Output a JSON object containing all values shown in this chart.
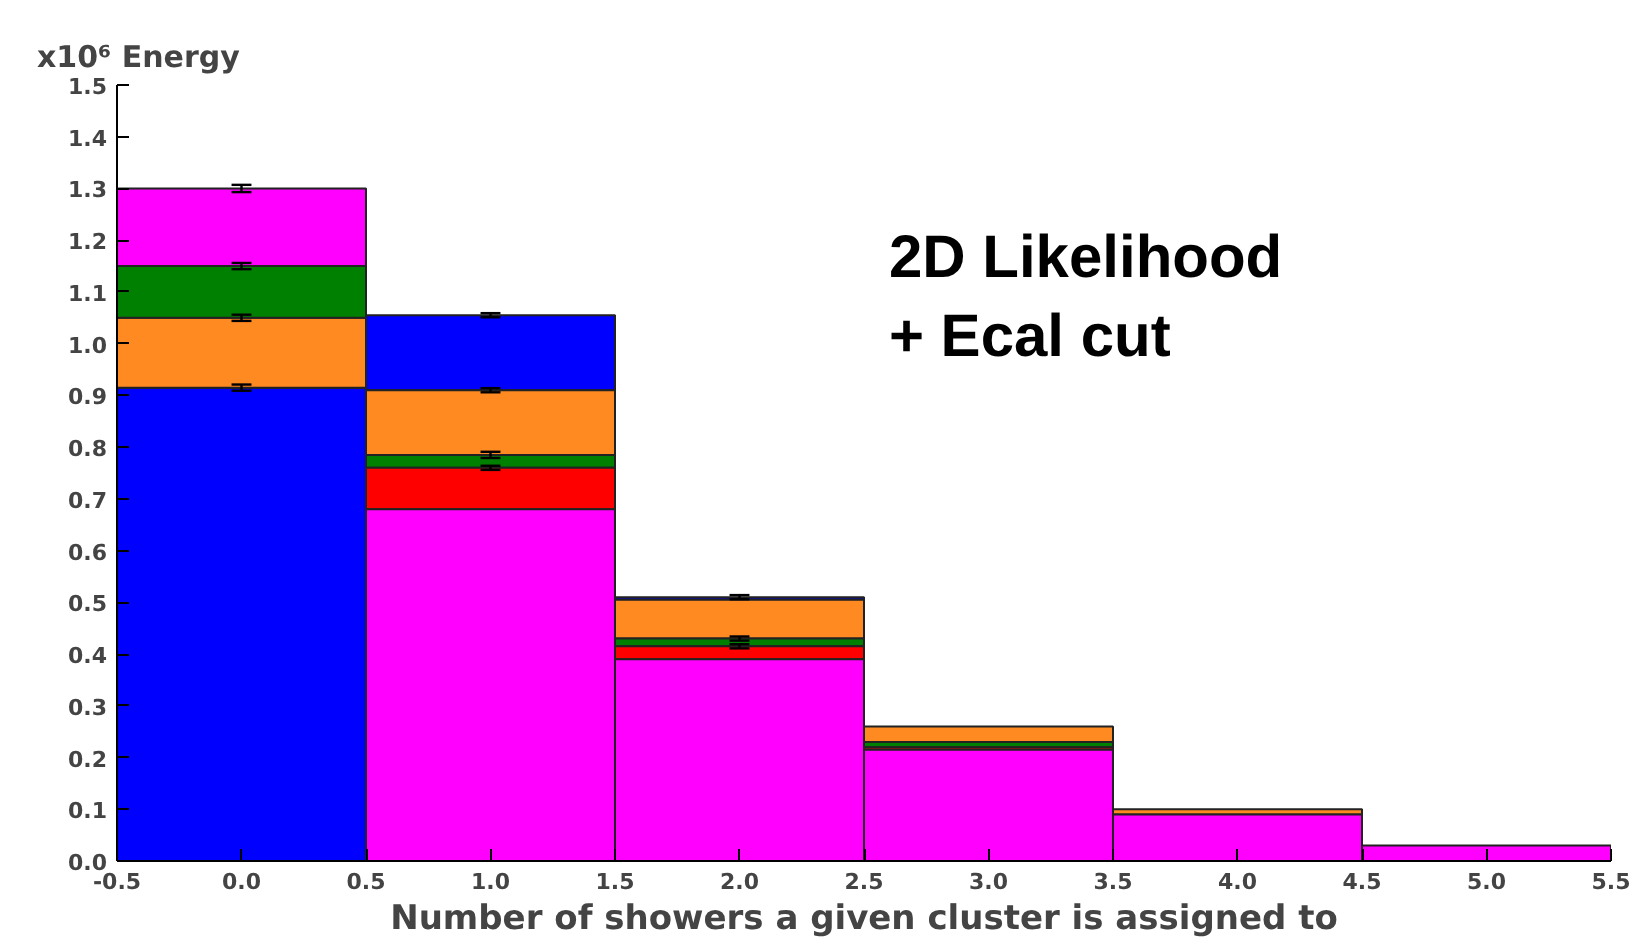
{
  "chart_data": {
    "type": "bar",
    "ylabel": "x10⁶ Energy",
    "xlabel": "Number of showers a given cluster is assigned to",
    "annotations": [
      "2D Likelihood\n+ Ecal cut"
    ],
    "x": [
      0,
      1,
      2,
      3,
      4,
      5
    ],
    "xlim": [
      -0.5,
      5.5
    ],
    "xticks": [
      {
        "value": -0.5,
        "label": "-0.5"
      },
      {
        "value": 0,
        "label": "0.0"
      },
      0.5,
      {
        "value": 1,
        "label": "1.0"
      },
      1.5,
      {
        "value": 2,
        "label": "2.0"
      },
      2.5,
      {
        "value": 3,
        "label": "3.0"
      },
      3.5,
      {
        "value": 4,
        "label": "4.0"
      },
      4.5,
      {
        "value": 5,
        "label": "5.0"
      },
      5.5
    ],
    "ylim": [
      0,
      1.5
    ],
    "yticks": [
      {
        "value": 0,
        "label": "0.0"
      },
      0.1,
      0.2,
      0.3,
      0.4,
      0.5,
      0.6,
      0.7,
      0.8,
      0.9,
      {
        "value": 1,
        "label": "1.0"
      },
      1.1,
      1.2,
      1.3,
      1.4,
      1.5
    ],
    "grid": false,
    "series": [
      {
        "color": "#0000ff",
        "base": [
          0,
          0.91,
          0.505,
          null,
          null,
          null
        ],
        "values": [
          0.915,
          0.145,
          0.005,
          null,
          null,
          null
        ],
        "errors": [
          0.006,
          0.004,
          0.004,
          null,
          null,
          null
        ]
      },
      {
        "color": "#ff8a22",
        "base": [
          0.915,
          0.785,
          0.43,
          0.23,
          0.09,
          null
        ],
        "values": [
          0.135,
          0.125,
          0.075,
          0.03,
          0.01,
          null
        ],
        "errors": [
          0.006,
          0.004,
          null,
          null,
          null,
          null
        ]
      },
      {
        "color": "#008000",
        "base": [
          1.05,
          0.76,
          0.415,
          0.22,
          null,
          null
        ],
        "values": [
          0.1,
          0.025,
          0.015,
          0.01,
          null,
          null
        ],
        "errors": [
          0.006,
          0.006,
          0.004,
          null,
          null,
          null
        ]
      },
      {
        "color": "#ff0000",
        "base": [
          null,
          0.68,
          0.39,
          0.215,
          null,
          null
        ],
        "values": [
          null,
          0.08,
          0.025,
          0.005,
          null,
          null
        ],
        "errors": [
          null,
          0.004,
          0.004,
          null,
          null,
          null
        ]
      },
      {
        "color": "#ff00ff",
        "base": [
          1.15,
          0,
          0,
          0,
          0,
          0
        ],
        "values": [
          0.15,
          0.68,
          0.39,
          0.215,
          0.09,
          0.03
        ],
        "errors": [
          0.007,
          null,
          null,
          null,
          null,
          null
        ]
      }
    ]
  }
}
